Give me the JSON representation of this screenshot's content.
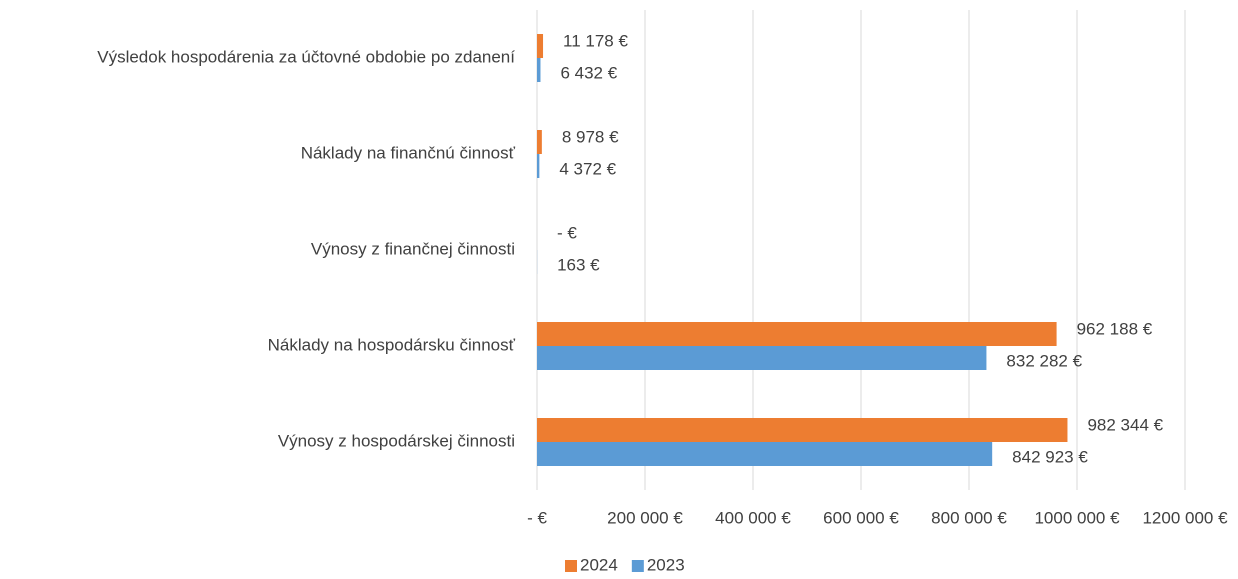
{
  "chart_data": {
    "type": "bar",
    "orientation": "horizontal",
    "categories": [
      "Výsledok hospodárenia za účtovné obdobie po zdanení",
      "Náklady na finančnú činnosť",
      "Výnosy z finančnej činnosti",
      "Náklady na hospodársku činnosť",
      "Výnosy z hospodárskej činnosti"
    ],
    "series": [
      {
        "name": "2024",
        "color": "#ed7d31",
        "values": [
          11178,
          8978,
          0,
          962188,
          982344
        ],
        "value_labels": [
          "11 178 €",
          "8 978 €",
          "-  €",
          "962 188 €",
          "982 344 €"
        ]
      },
      {
        "name": "2023",
        "color": "#5b9bd5",
        "values": [
          6432,
          4372,
          163,
          832282,
          842923
        ],
        "value_labels": [
          "6 432 €",
          "4 372 €",
          "163 €",
          "832 282 €",
          "842 923 €"
        ]
      }
    ],
    "xlim": [
      0,
      1200000
    ],
    "xticks": [
      {
        "value": 0,
        "label": "-  €"
      },
      {
        "value": 200000,
        "label": "200 000 €"
      },
      {
        "value": 400000,
        "label": "400 000 €"
      },
      {
        "value": 600000,
        "label": "600 000 €"
      },
      {
        "value": 800000,
        "label": "800 000 €"
      },
      {
        "value": 1000000,
        "label": "1000 000 €"
      },
      {
        "value": 1200000,
        "label": "1200 000 €"
      }
    ],
    "grid": true,
    "legend": "bottom"
  }
}
